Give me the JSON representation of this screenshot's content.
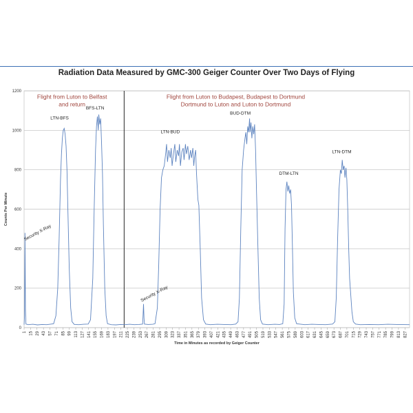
{
  "chart_data": {
    "type": "line",
    "title": "Radiation Data Measured by GMC-300 Geiger Counter Over Two Days of Flying",
    "xlabel": "Time in Minutes as recorded by Geiger Counter",
    "ylabel": "Counts Per Minute",
    "xlim": [
      1,
      837
    ],
    "ylim": [
      0,
      1200
    ],
    "yticks": [
      0,
      200,
      400,
      600,
      800,
      1000,
      1200
    ],
    "xticks": [
      1,
      15,
      29,
      43,
      57,
      71,
      85,
      99,
      113,
      127,
      141,
      155,
      169,
      183,
      197,
      211,
      225,
      239,
      253,
      267,
      281,
      295,
      309,
      323,
      337,
      351,
      365,
      379,
      393,
      407,
      421,
      435,
      449,
      463,
      477,
      491,
      505,
      519,
      533,
      547,
      561,
      575,
      589,
      603,
      617,
      631,
      645,
      659,
      673,
      687,
      701,
      715,
      729,
      743,
      757,
      771,
      785,
      799,
      813,
      827
    ],
    "grid": "horizontal",
    "divider_x": 218,
    "series": [
      {
        "points": [
          [
            1,
            15
          ],
          [
            2,
            60
          ],
          [
            3,
            480
          ],
          [
            4,
            90
          ],
          [
            5,
            18
          ],
          [
            10,
            15
          ],
          [
            20,
            17
          ],
          [
            30,
            14
          ],
          [
            40,
            16
          ],
          [
            50,
            15
          ],
          [
            60,
            18
          ],
          [
            65,
            20
          ],
          [
            70,
            60
          ],
          [
            74,
            200
          ],
          [
            77,
            450
          ],
          [
            80,
            750
          ],
          [
            82,
            880
          ],
          [
            84,
            960
          ],
          [
            86,
            1000
          ],
          [
            88,
            1010
          ],
          [
            90,
            980
          ],
          [
            92,
            920
          ],
          [
            94,
            800
          ],
          [
            96,
            600
          ],
          [
            99,
            300
          ],
          [
            102,
            100
          ],
          [
            105,
            30
          ],
          [
            110,
            16
          ],
          [
            120,
            15
          ],
          [
            130,
            17
          ],
          [
            140,
            18
          ],
          [
            145,
            40
          ],
          [
            150,
            250
          ],
          [
            153,
            600
          ],
          [
            156,
            900
          ],
          [
            158,
            1020
          ],
          [
            160,
            1070
          ],
          [
            162,
            1000
          ],
          [
            163,
            1080
          ],
          [
            165,
            1030
          ],
          [
            167,
            1060
          ],
          [
            169,
            940
          ],
          [
            171,
            780
          ],
          [
            173,
            520
          ],
          [
            176,
            200
          ],
          [
            179,
            60
          ],
          [
            182,
            20
          ],
          [
            190,
            15
          ],
          [
            200,
            14
          ],
          [
            210,
            16
          ],
          [
            220,
            15
          ],
          [
            230,
            17
          ],
          [
            240,
            15
          ],
          [
            250,
            16
          ],
          [
            258,
            18
          ],
          [
            259,
            60
          ],
          [
            260,
            120
          ],
          [
            261,
            50
          ],
          [
            262,
            18
          ],
          [
            270,
            16
          ],
          [
            280,
            17
          ],
          [
            285,
            20
          ],
          [
            290,
            100
          ],
          [
            293,
            320
          ],
          [
            296,
            600
          ],
          [
            299,
            760
          ],
          [
            302,
            800
          ],
          [
            305,
            820
          ],
          [
            308,
            880
          ],
          [
            310,
            930
          ],
          [
            312,
            840
          ],
          [
            315,
            900
          ],
          [
            318,
            860
          ],
          [
            320,
            910
          ],
          [
            322,
            820
          ],
          [
            325,
            880
          ],
          [
            328,
            930
          ],
          [
            330,
            840
          ],
          [
            333,
            900
          ],
          [
            336,
            870
          ],
          [
            338,
            930
          ],
          [
            340,
            820
          ],
          [
            343,
            890
          ],
          [
            346,
            910
          ],
          [
            348,
            850
          ],
          [
            351,
            930
          ],
          [
            353,
            880
          ],
          [
            356,
            920
          ],
          [
            359,
            850
          ],
          [
            362,
            900
          ],
          [
            364,
            860
          ],
          [
            367,
            910
          ],
          [
            369,
            820
          ],
          [
            371,
            870
          ],
          [
            373,
            900
          ],
          [
            375,
            780
          ],
          [
            378,
            650
          ],
          [
            380,
            620
          ],
          [
            383,
            400
          ],
          [
            386,
            150
          ],
          [
            390,
            40
          ],
          [
            395,
            18
          ],
          [
            405,
            15
          ],
          [
            420,
            17
          ],
          [
            435,
            16
          ],
          [
            450,
            15
          ],
          [
            460,
            18
          ],
          [
            465,
            30
          ],
          [
            468,
            150
          ],
          [
            471,
            500
          ],
          [
            474,
            800
          ],
          [
            477,
            900
          ],
          [
            480,
            960
          ],
          [
            482,
            990
          ],
          [
            484,
            930
          ],
          [
            486,
            1020
          ],
          [
            488,
            990
          ],
          [
            490,
            1060
          ],
          [
            491,
            990
          ],
          [
            493,
            1040
          ],
          [
            495,
            960
          ],
          [
            497,
            1020
          ],
          [
            499,
            980
          ],
          [
            501,
            1030
          ],
          [
            503,
            900
          ],
          [
            505,
            700
          ],
          [
            508,
            420
          ],
          [
            511,
            150
          ],
          [
            514,
            40
          ],
          [
            518,
            18
          ],
          [
            530,
            15
          ],
          [
            545,
            17
          ],
          [
            555,
            16
          ],
          [
            562,
            20
          ],
          [
            565,
            120
          ],
          [
            567,
            500
          ],
          [
            569,
            700
          ],
          [
            571,
            740
          ],
          [
            573,
            690
          ],
          [
            575,
            720
          ],
          [
            577,
            680
          ],
          [
            579,
            700
          ],
          [
            581,
            620
          ],
          [
            583,
            400
          ],
          [
            585,
            180
          ],
          [
            588,
            50
          ],
          [
            592,
            20
          ],
          [
            610,
            15
          ],
          [
            625,
            17
          ],
          [
            640,
            16
          ],
          [
            655,
            15
          ],
          [
            670,
            18
          ],
          [
            675,
            30
          ],
          [
            678,
            150
          ],
          [
            681,
            450
          ],
          [
            684,
            700
          ],
          [
            687,
            800
          ],
          [
            689,
            780
          ],
          [
            691,
            850
          ],
          [
            693,
            800
          ],
          [
            695,
            820
          ],
          [
            697,
            760
          ],
          [
            699,
            810
          ],
          [
            701,
            750
          ],
          [
            703,
            600
          ],
          [
            705,
            400
          ],
          [
            707,
            250
          ],
          [
            709,
            180
          ],
          [
            712,
            80
          ],
          [
            715,
            30
          ],
          [
            720,
            18
          ],
          [
            730,
            15
          ],
          [
            750,
            16
          ],
          [
            770,
            15
          ],
          [
            790,
            17
          ],
          [
            810,
            16
          ],
          [
            837,
            15
          ]
        ]
      }
    ],
    "annotations": [
      {
        "text": "Security X-Ray",
        "x": 3,
        "y": 440,
        "rotate": -28
      },
      {
        "text": "LTN-BFS",
        "x": 78,
        "y": 1055,
        "rotate": 0
      },
      {
        "text": "BFS-LTN",
        "x": 155,
        "y": 1105,
        "rotate": 0
      },
      {
        "text": "Security X-Ray",
        "x": 256,
        "y": 130,
        "rotate": -28
      },
      {
        "text": "LTN-BUD",
        "x": 318,
        "y": 985,
        "rotate": 0
      },
      {
        "text": "BUD-DTM",
        "x": 470,
        "y": 1080,
        "rotate": 0
      },
      {
        "text": "DTM-LTN",
        "x": 575,
        "y": 775,
        "rotate": 0
      },
      {
        "text": "LTN-DTM",
        "x": 690,
        "y": 885,
        "rotate": 0
      }
    ],
    "flight_labels": [
      {
        "lines": [
          "Flight  from Luton to Belfast",
          "and return"
        ],
        "x": 105,
        "y": 1160
      },
      {
        "lines": [
          "Flight from Luton to Budapest, Budapest to Dortmund",
          "Dortmund to Luton and Luton to Dortmund"
        ],
        "x": 460,
        "y": 1160
      }
    ]
  }
}
